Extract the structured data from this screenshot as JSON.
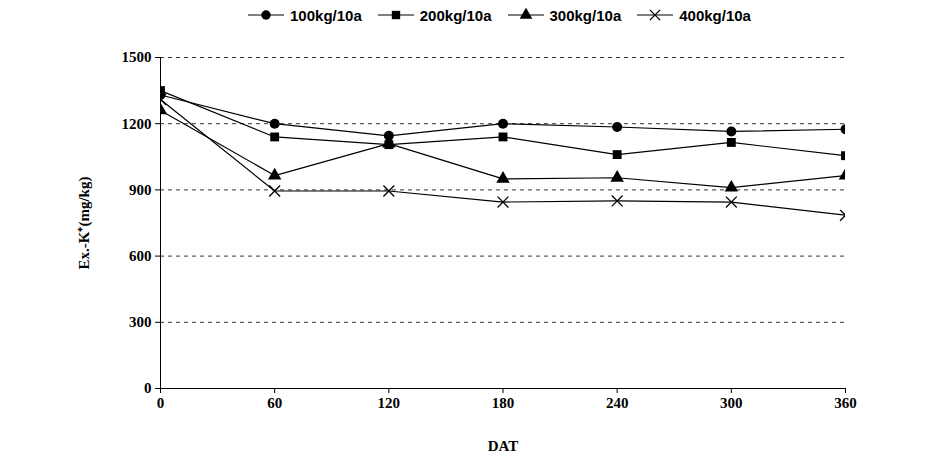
{
  "chart_data": {
    "type": "line",
    "x_label": "DAT",
    "y_label": "Ex.-K⁺(mg/kg)",
    "x": [
      0,
      60,
      120,
      180,
      240,
      300,
      360
    ],
    "xlim": [
      0,
      360
    ],
    "xticks": [
      0,
      60,
      120,
      180,
      240,
      300,
      360
    ],
    "ylim": [
      0,
      1500
    ],
    "yticks": [
      0,
      300,
      600,
      900,
      1200,
      1500
    ],
    "grid": true,
    "legend": "top",
    "series": [
      {
        "name": "100kg/10a",
        "color": "#000000",
        "marker": "circle",
        "values": [
          1330,
          1200,
          1145,
          1200,
          1185,
          1165,
          1175
        ]
      },
      {
        "name": "200kg/10a",
        "color": "#000000",
        "marker": "square",
        "values": [
          1350,
          1140,
          1105,
          1140,
          1060,
          1115,
          1055
        ]
      },
      {
        "name": "300kg/10a",
        "color": "#000000",
        "marker": "triangle",
        "values": [
          1260,
          965,
          1110,
          950,
          955,
          910,
          965
        ]
      },
      {
        "name": "400kg/10a",
        "color": "#000000",
        "marker": "times",
        "values": [
          1310,
          895,
          895,
          845,
          850,
          845,
          785
        ]
      }
    ]
  }
}
